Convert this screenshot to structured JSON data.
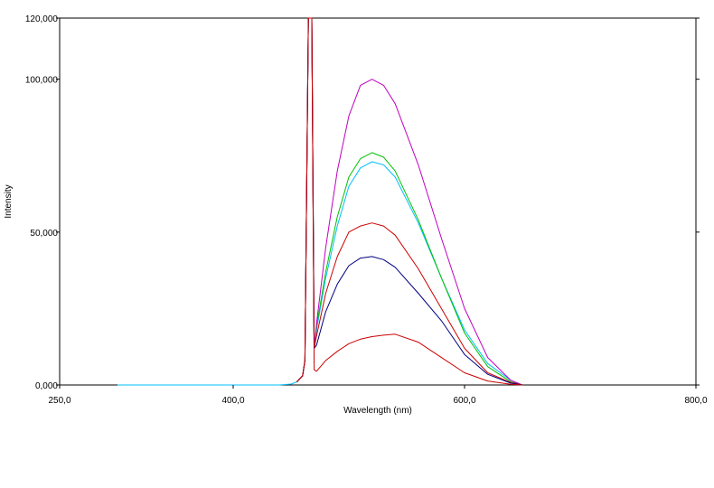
{
  "chart_data": {
    "type": "line",
    "title": "",
    "xlabel": "Wavelength (nm)",
    "ylabel": "Intensity",
    "xlim": [
      250,
      800
    ],
    "ylim": [
      0,
      120000
    ],
    "grid": false,
    "legend": "none",
    "x_ticks": [
      {
        "value": 250,
        "label": "250,0"
      },
      {
        "value": 400,
        "label": "400,0"
      },
      {
        "value": 600,
        "label": "600,0"
      },
      {
        "value": 800,
        "label": "800,0"
      }
    ],
    "y_ticks": [
      {
        "value": 0,
        "label": "0,000"
      },
      {
        "value": 50000,
        "label": "50,000"
      },
      {
        "value": 100000,
        "label": "100,000"
      },
      {
        "value": 120000,
        "label": "120,000"
      }
    ],
    "series": [
      {
        "color": "#00bfff",
        "x": [
          300,
          440,
          450,
          455,
          460,
          462,
          465,
          468,
          470,
          472,
          480,
          490,
          500,
          510,
          520,
          530,
          540,
          560,
          580,
          600,
          620,
          640,
          650
        ],
        "y": [
          0,
          0,
          300,
          1000,
          3000,
          8000,
          120000,
          120000,
          12000,
          18000,
          35000,
          52000,
          65000,
          71000,
          73000,
          72000,
          68000,
          53000,
          35000,
          18000,
          7000,
          1500,
          0
        ]
      },
      {
        "color": "#00c000",
        "x": [
          455,
          460,
          462,
          465,
          468,
          470,
          472,
          480,
          490,
          500,
          510,
          520,
          530,
          540,
          560,
          580,
          600,
          620,
          640,
          650
        ],
        "y": [
          1000,
          3000,
          8000,
          120000,
          120000,
          12000,
          19000,
          37000,
          55000,
          68000,
          74000,
          76000,
          74500,
          70000,
          54000,
          35000,
          17000,
          6000,
          1000,
          0
        ]
      },
      {
        "color": "#c000c0",
        "x": [
          455,
          460,
          462,
          465,
          468,
          470,
          472,
          480,
          490,
          500,
          510,
          520,
          530,
          540,
          560,
          580,
          600,
          620,
          640,
          650
        ],
        "y": [
          1000,
          3000,
          8000,
          120000,
          120000,
          12000,
          20000,
          45000,
          70000,
          88000,
          98000,
          100000,
          98000,
          92000,
          72000,
          48000,
          25000,
          9000,
          1500,
          0
        ]
      },
      {
        "color": "#cc0000",
        "x": [
          455,
          460,
          462,
          465,
          468,
          470,
          472,
          480,
          490,
          500,
          510,
          520,
          530,
          540,
          560,
          580,
          600,
          620,
          640,
          650
        ],
        "y": [
          1000,
          3000,
          8000,
          120000,
          120000,
          12000,
          16000,
          30000,
          42000,
          50000,
          52000,
          53000,
          52000,
          49000,
          38000,
          25000,
          12000,
          4000,
          800,
          0
        ]
      },
      {
        "color": "#000080",
        "x": [
          455,
          460,
          462,
          465,
          468,
          470,
          472,
          480,
          490,
          500,
          510,
          520,
          530,
          540,
          560,
          580,
          600,
          620,
          640,
          650
        ],
        "y": [
          1000,
          3000,
          8000,
          120000,
          120000,
          12000,
          13000,
          24000,
          33000,
          39000,
          41500,
          42000,
          41000,
          38500,
          30000,
          21000,
          10000,
          3500,
          600,
          0
        ]
      },
      {
        "color": "#cc0000",
        "x": [
          455,
          460,
          462,
          465,
          468,
          470,
          472,
          480,
          490,
          500,
          510,
          520,
          530,
          540,
          560,
          580,
          600,
          620,
          640,
          650
        ],
        "y": [
          1000,
          3000,
          8000,
          120000,
          120000,
          5000,
          4500,
          8000,
          11000,
          13500,
          15000,
          15800,
          16300,
          16600,
          14000,
          9000,
          4000,
          1300,
          200,
          0
        ]
      }
    ]
  }
}
